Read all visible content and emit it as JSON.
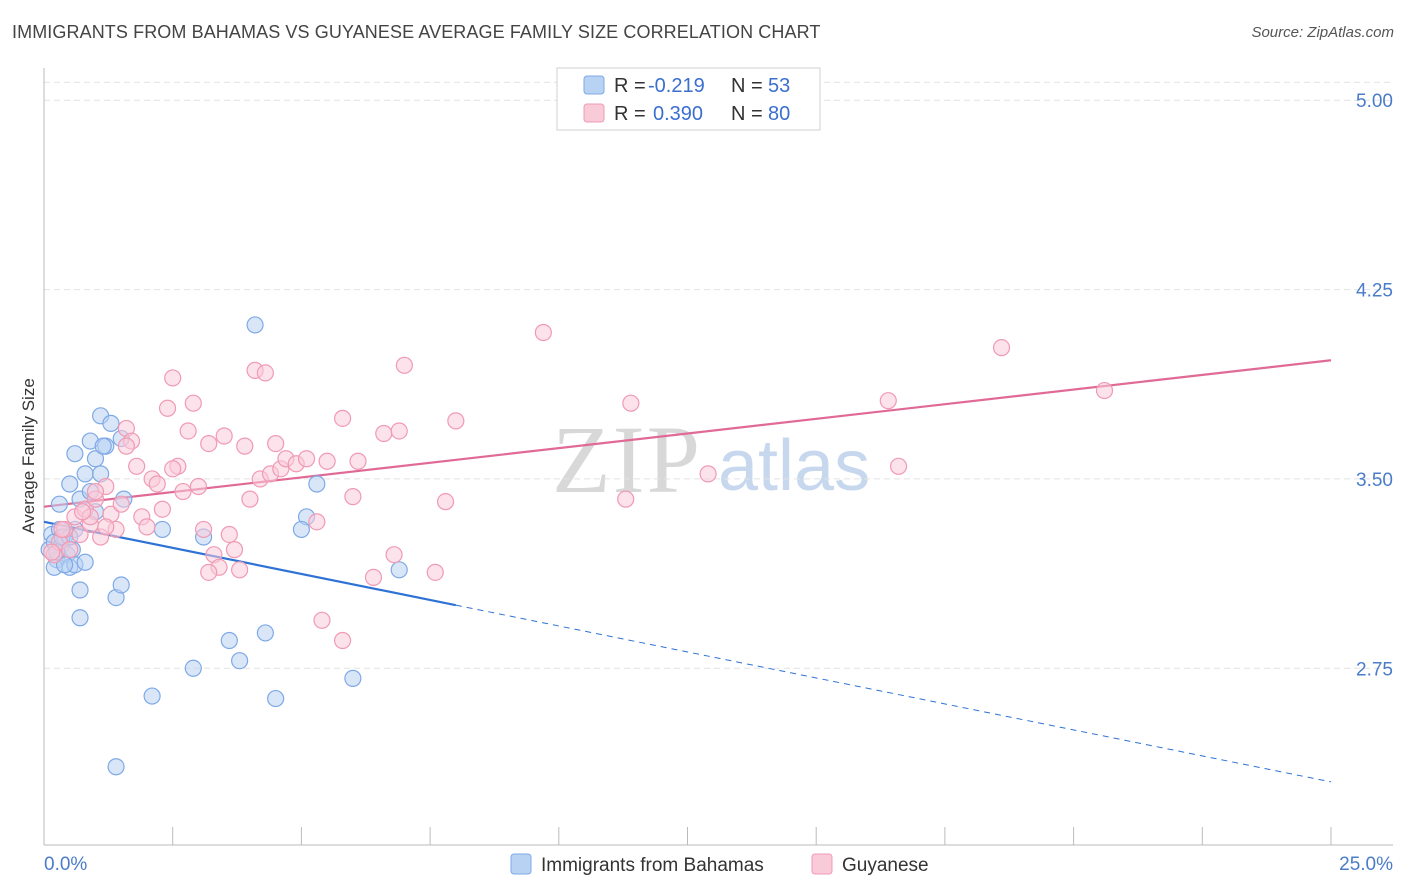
{
  "title": "IMMIGRANTS FROM BAHAMAS VS GUYANESE AVERAGE FAMILY SIZE CORRELATION CHART",
  "source": "Source: ZipAtlas.com",
  "watermark": {
    "zip": "ZIP",
    "atlas": "atlas"
  },
  "legend_box": {
    "rows": [
      {
        "r_label": "R =",
        "r_value": "-0.219",
        "n_label": "N =",
        "n_value": "53",
        "color": "#a9c8f0"
      },
      {
        "r_label": "R =",
        "r_value": "0.390",
        "n_label": "N =",
        "n_value": "80",
        "color": "#f7b8cc"
      }
    ]
  },
  "chart_data": {
    "type": "scatter",
    "title": "IMMIGRANTS FROM BAHAMAS VS GUYANESE AVERAGE FAMILY SIZE CORRELATION CHART",
    "xlabel": "",
    "ylabel": "Average Family Size",
    "xlim": [
      0,
      25
    ],
    "ylim": [
      2.05,
      5.1
    ],
    "x_tick_labels": [
      "0.0%",
      "25.0%"
    ],
    "y_ticks": [
      2.75,
      3.5,
      4.25,
      5.0
    ],
    "y_tick_labels": [
      "2.75",
      "3.50",
      "4.25",
      "5.00"
    ],
    "grid": "horizontal dashed",
    "legend_position": "bottom",
    "series": [
      {
        "name": "Immigrants from Bahamas",
        "color": "#7fa9e6",
        "fill": "#b8d2f3",
        "trend": {
          "x0": 0,
          "y0": 3.33,
          "x1": 8.0,
          "y1": 3.0,
          "dashed_to_x": 25,
          "dashed_to_y": 2.3,
          "color": "#2f72d6"
        },
        "points": [
          [
            0.1,
            3.22
          ],
          [
            0.15,
            3.28
          ],
          [
            0.2,
            3.25
          ],
          [
            0.25,
            3.18
          ],
          [
            0.3,
            3.3
          ],
          [
            0.35,
            3.24
          ],
          [
            0.4,
            3.27
          ],
          [
            0.45,
            3.2
          ],
          [
            0.5,
            3.15
          ],
          [
            0.55,
            3.22
          ],
          [
            0.6,
            3.3
          ],
          [
            0.2,
            3.15
          ],
          [
            0.3,
            3.4
          ],
          [
            0.5,
            3.48
          ],
          [
            0.6,
            3.6
          ],
          [
            0.7,
            3.42
          ],
          [
            0.8,
            3.52
          ],
          [
            0.9,
            3.65
          ],
          [
            1.0,
            3.58
          ],
          [
            1.1,
            3.75
          ],
          [
            1.2,
            3.63
          ],
          [
            1.3,
            3.72
          ],
          [
            1.5,
            3.66
          ],
          [
            0.9,
            3.45
          ],
          [
            1.1,
            3.52
          ],
          [
            1.0,
            3.37
          ],
          [
            0.6,
            3.16
          ],
          [
            0.7,
            3.06
          ],
          [
            0.7,
            2.95
          ],
          [
            1.4,
            3.03
          ],
          [
            1.5,
            3.08
          ],
          [
            1.55,
            3.42
          ],
          [
            0.4,
            3.16
          ],
          [
            2.3,
            3.3
          ],
          [
            3.1,
            3.27
          ],
          [
            4.1,
            4.11
          ],
          [
            5.3,
            3.48
          ],
          [
            5.1,
            3.35
          ],
          [
            5.0,
            3.3
          ],
          [
            6.9,
            3.14
          ],
          [
            2.1,
            2.64
          ],
          [
            2.9,
            2.75
          ],
          [
            3.6,
            2.86
          ],
          [
            3.8,
            2.78
          ],
          [
            4.3,
            2.89
          ],
          [
            4.5,
            2.63
          ],
          [
            6.0,
            2.71
          ],
          [
            1.4,
            2.36
          ],
          [
            0.35,
            3.27
          ],
          [
            0.25,
            3.21
          ],
          [
            0.5,
            3.27
          ],
          [
            0.8,
            3.17
          ],
          [
            1.15,
            3.63
          ]
        ]
      },
      {
        "name": "Guyanese",
        "color": "#f09ab4",
        "fill": "#f9cbd8",
        "trend": {
          "x0": 0,
          "y0": 3.39,
          "x1": 25,
          "y1": 3.97,
          "color": "#e06a95"
        },
        "points": [
          [
            0.2,
            3.2
          ],
          [
            0.3,
            3.25
          ],
          [
            0.4,
            3.3
          ],
          [
            0.5,
            3.22
          ],
          [
            0.6,
            3.35
          ],
          [
            0.7,
            3.28
          ],
          [
            0.8,
            3.38
          ],
          [
            0.9,
            3.32
          ],
          [
            1.0,
            3.42
          ],
          [
            1.1,
            3.27
          ],
          [
            1.2,
            3.47
          ],
          [
            1.3,
            3.36
          ],
          [
            1.4,
            3.3
          ],
          [
            1.5,
            3.4
          ],
          [
            1.6,
            3.7
          ],
          [
            1.7,
            3.65
          ],
          [
            1.8,
            3.55
          ],
          [
            1.9,
            3.35
          ],
          [
            2.0,
            3.31
          ],
          [
            2.1,
            3.5
          ],
          [
            2.2,
            3.48
          ],
          [
            2.3,
            3.38
          ],
          [
            2.4,
            3.78
          ],
          [
            2.5,
            3.9
          ],
          [
            2.6,
            3.55
          ],
          [
            2.7,
            3.45
          ],
          [
            2.8,
            3.69
          ],
          [
            2.9,
            3.8
          ],
          [
            3.0,
            3.47
          ],
          [
            3.1,
            3.3
          ],
          [
            3.2,
            3.64
          ],
          [
            3.3,
            3.2
          ],
          [
            3.4,
            3.15
          ],
          [
            3.5,
            3.67
          ],
          [
            3.6,
            3.28
          ],
          [
            3.7,
            3.22
          ],
          [
            3.8,
            3.14
          ],
          [
            3.9,
            3.63
          ],
          [
            4.0,
            3.42
          ],
          [
            4.1,
            3.93
          ],
          [
            4.2,
            3.5
          ],
          [
            4.3,
            3.92
          ],
          [
            4.4,
            3.52
          ],
          [
            4.5,
            3.64
          ],
          [
            4.6,
            3.54
          ],
          [
            4.7,
            3.58
          ],
          [
            4.9,
            3.56
          ],
          [
            5.1,
            3.58
          ],
          [
            5.3,
            3.33
          ],
          [
            5.5,
            3.57
          ],
          [
            5.8,
            3.74
          ],
          [
            6.0,
            3.43
          ],
          [
            6.1,
            3.57
          ],
          [
            6.4,
            3.11
          ],
          [
            6.6,
            3.68
          ],
          [
            6.8,
            3.2
          ],
          [
            6.9,
            3.69
          ],
          [
            7.0,
            3.95
          ],
          [
            7.6,
            3.13
          ],
          [
            7.8,
            3.41
          ],
          [
            8.0,
            3.73
          ],
          [
            9.7,
            4.08
          ],
          [
            11.3,
            3.42
          ],
          [
            11.4,
            3.8
          ],
          [
            12.9,
            3.52
          ],
          [
            16.4,
            3.81
          ],
          [
            16.6,
            3.55
          ],
          [
            18.6,
            4.02
          ],
          [
            20.6,
            3.85
          ],
          [
            5.8,
            2.86
          ],
          [
            5.4,
            2.94
          ],
          [
            3.2,
            3.13
          ],
          [
            1.2,
            3.31
          ],
          [
            0.9,
            3.35
          ],
          [
            0.35,
            3.3
          ],
          [
            0.15,
            3.21
          ],
          [
            1.6,
            3.63
          ],
          [
            1.0,
            3.45
          ],
          [
            2.5,
            3.54
          ],
          [
            0.75,
            3.37
          ]
        ]
      }
    ]
  }
}
